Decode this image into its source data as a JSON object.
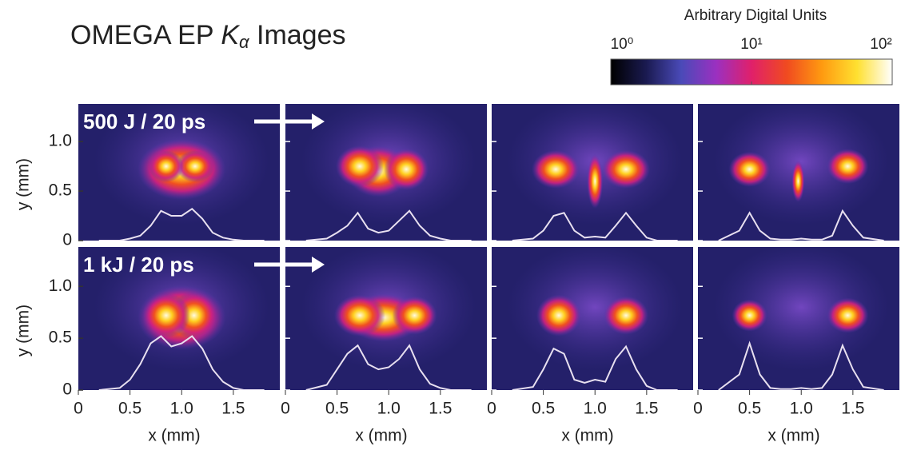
{
  "title": [
    "OMEGA EP ",
    "K",
    "α",
    " Images"
  ],
  "colorbar": {
    "label": "Arbitrary Digital Units",
    "log": true,
    "lim": [
      1,
      100
    ],
    "ticks": [
      {
        "value": 1,
        "label": "10⁰"
      },
      {
        "value": 10,
        "label": "10¹"
      },
      {
        "value": 100,
        "label": "10²"
      }
    ],
    "colors": [
      "#000000",
      "#1a1a50",
      "#4a4ab8",
      "#9b30c0",
      "#e0206a",
      "#f04a20",
      "#ff9a10",
      "#ffe030",
      "#ffffff"
    ]
  },
  "xlabel": "x (mm)",
  "ylabel": "y (mm)",
  "xlim": [
    0,
    1.95
  ],
  "ylim": [
    0,
    1.38
  ],
  "xticks": [
    0,
    0.5,
    {
      "value": 1,
      "label": "1.0"
    },
    1.5
  ],
  "yticks": [
    0,
    0.5,
    {
      "value": 1,
      "label": "1.0"
    }
  ],
  "lineout_color": "#e8e0f0",
  "lineout_x": [
    0.2,
    0.4,
    0.5,
    0.6,
    0.7,
    0.8,
    0.9,
    1.0,
    1.1,
    1.2,
    1.3,
    1.4,
    1.5,
    1.6,
    1.8
  ],
  "rows": [
    {
      "label": "500 J / 20 ps",
      "lineouts": [
        [
          0,
          0,
          0.02,
          0.05,
          0.15,
          0.3,
          0.25,
          0.25,
          0.32,
          0.22,
          0.08,
          0.03,
          0.01,
          0,
          0
        ],
        [
          0,
          0.02,
          0.08,
          0.15,
          0.28,
          0.12,
          0.08,
          0.1,
          0.2,
          0.3,
          0.15,
          0.05,
          0.02,
          0,
          0
        ],
        [
          0,
          0.02,
          0.1,
          0.25,
          0.28,
          0.1,
          0.03,
          0.04,
          0.03,
          0.15,
          0.28,
          0.15,
          0.03,
          0,
          0
        ],
        [
          0,
          0.1,
          0.28,
          0.1,
          0.02,
          0.01,
          0.01,
          0.02,
          0.01,
          0.01,
          0.05,
          0.3,
          0.15,
          0.03,
          0
        ]
      ]
    },
    {
      "label": "1 kJ / 20 ps",
      "lineouts": [
        [
          0,
          0.02,
          0.1,
          0.25,
          0.45,
          0.52,
          0.42,
          0.45,
          0.52,
          0.4,
          0.2,
          0.08,
          0.02,
          0,
          0
        ],
        [
          0,
          0.05,
          0.2,
          0.35,
          0.43,
          0.25,
          0.2,
          0.22,
          0.3,
          0.43,
          0.2,
          0.06,
          0.02,
          0,
          0
        ],
        [
          0,
          0.03,
          0.2,
          0.4,
          0.35,
          0.1,
          0.07,
          0.1,
          0.08,
          0.3,
          0.42,
          0.2,
          0.04,
          0,
          0
        ],
        [
          0,
          0.15,
          0.45,
          0.15,
          0.02,
          0.01,
          0.01,
          0.02,
          0.01,
          0.02,
          0.15,
          0.43,
          0.2,
          0.03,
          0
        ]
      ]
    }
  ]
}
